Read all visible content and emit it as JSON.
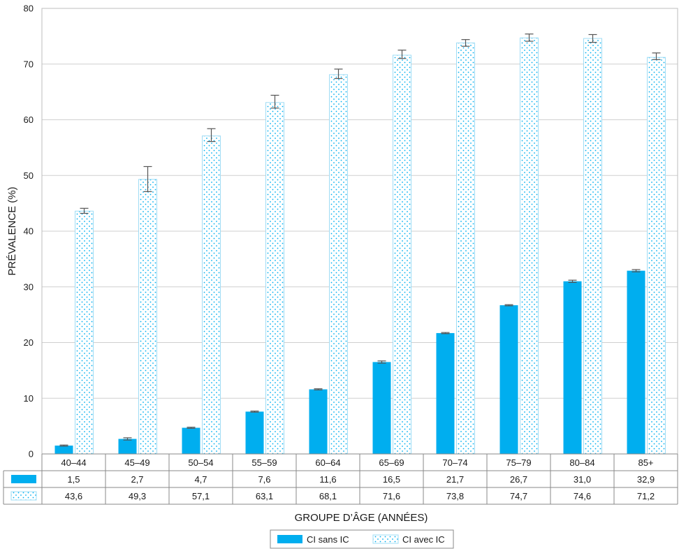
{
  "chart_data": {
    "type": "bar",
    "ylabel": "PRÉVALENCE (%)",
    "xlabel": "GROUPE D’ÂGE (ANNÉES)",
    "ylim": [
      0,
      80
    ],
    "yticks": [
      "0",
      "10",
      "20",
      "30",
      "40",
      "50",
      "60",
      "70",
      "80"
    ],
    "grid": true,
    "legend_position": "bottom",
    "categories": [
      "40–44",
      "45–49",
      "50–54",
      "55–59",
      "60–64",
      "65–69",
      "70–74",
      "75–79",
      "80–84",
      "85+"
    ],
    "series": [
      {
        "name": "CI sans IC",
        "style": "solid",
        "color": "#00aeef",
        "values": [
          1.5,
          2.7,
          4.7,
          7.6,
          11.6,
          16.5,
          21.7,
          26.7,
          31.0,
          32.9
        ],
        "labels": [
          "1,5",
          "2,7",
          "4,7",
          "7,6",
          "11,6",
          "16,5",
          "21,7",
          "26,7",
          "31,0",
          "32,9"
        ],
        "ci_low": [
          1.4,
          2.5,
          4.6,
          7.5,
          11.5,
          16.3,
          21.6,
          26.6,
          30.8,
          32.7
        ],
        "ci_high": [
          1.6,
          2.9,
          4.8,
          7.7,
          11.7,
          16.7,
          21.8,
          26.8,
          31.2,
          33.1
        ]
      },
      {
        "name": "CI avec IC",
        "style": "dotted",
        "color": "#00aeef",
        "values": [
          43.6,
          49.3,
          57.1,
          63.1,
          68.1,
          71.6,
          73.8,
          74.7,
          74.6,
          71.2
        ],
        "labels": [
          "43,6",
          "49,3",
          "57,1",
          "63,1",
          "68,1",
          "71,6",
          "73,8",
          "74,7",
          "74,6",
          "71,2"
        ],
        "ci_low": [
          43.2,
          47.1,
          56.1,
          62.1,
          67.4,
          71.0,
          73.2,
          74.1,
          73.9,
          70.8
        ],
        "ci_high": [
          44.1,
          51.6,
          58.4,
          64.4,
          69.1,
          72.5,
          74.4,
          75.4,
          75.3,
          72.0
        ]
      }
    ]
  }
}
